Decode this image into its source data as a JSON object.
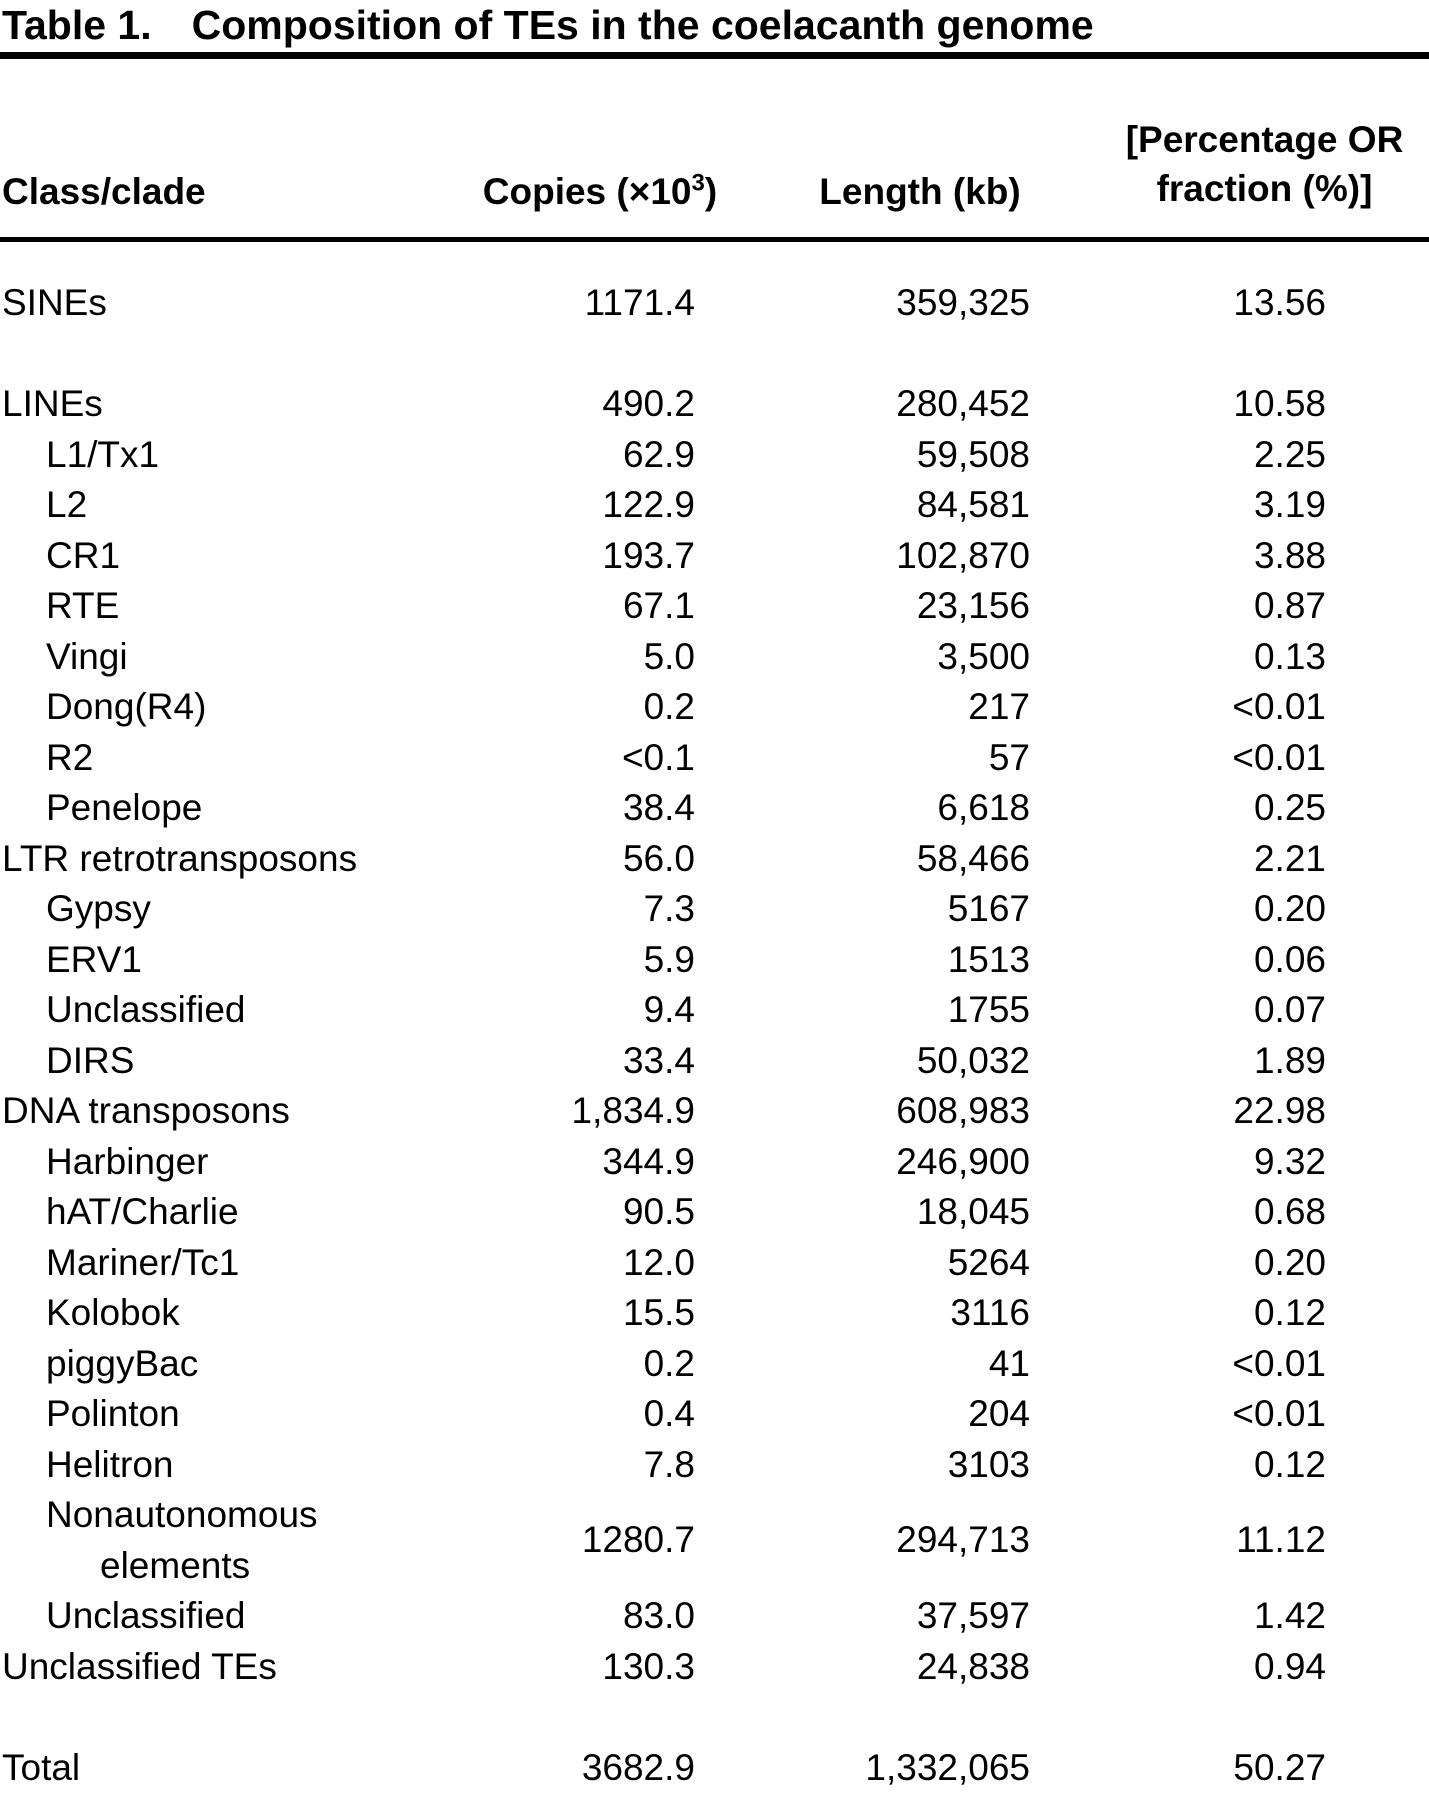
{
  "title": {
    "label": "Table 1.",
    "text": "Composition of TEs in the coelacanth genome"
  },
  "table": {
    "columns": {
      "class_clade": "Class/clade",
      "copies_prefix": "Copies (×10",
      "copies_sup": "3",
      "copies_suffix": ")",
      "length": "Length (kb)",
      "percentage_line1": "[Percentage OR",
      "percentage_line2": "fraction (%)]"
    },
    "rows": [
      {
        "label": "SINEs",
        "indent": 0,
        "copies": "1171.4",
        "length": "359,325",
        "pct": "13.56"
      },
      {
        "blank": true
      },
      {
        "label": "LINEs",
        "indent": 0,
        "copies": "490.2",
        "length": "280,452",
        "pct": "10.58"
      },
      {
        "label": "L1/Tx1",
        "indent": 1,
        "copies": "62.9",
        "length": "59,508",
        "pct": "2.25"
      },
      {
        "label": "L2",
        "indent": 1,
        "copies": "122.9",
        "length": "84,581",
        "pct": "3.19"
      },
      {
        "label": "CR1",
        "indent": 1,
        "copies": "193.7",
        "length": "102,870",
        "pct": "3.88"
      },
      {
        "label": "RTE",
        "indent": 1,
        "copies": "67.1",
        "length": "23,156",
        "pct": "0.87"
      },
      {
        "label": "Vingi",
        "indent": 1,
        "copies": "5.0",
        "length": "3,500",
        "pct": "0.13"
      },
      {
        "label": "Dong(R4)",
        "indent": 1,
        "copies": "0.2",
        "length": "217",
        "pct": "<0.01"
      },
      {
        "label": "R2",
        "indent": 1,
        "copies": "<0.1",
        "length": "57",
        "pct": "<0.01"
      },
      {
        "label": "Penelope",
        "indent": 1,
        "copies": "38.4",
        "length": "6,618",
        "pct": "0.25"
      },
      {
        "label": "LTR retrotransposons",
        "indent": 0,
        "copies": "56.0",
        "length": "58,466",
        "pct": "2.21"
      },
      {
        "label": "Gypsy",
        "indent": 1,
        "copies": "7.3",
        "length": "5167",
        "pct": "0.20"
      },
      {
        "label": "ERV1",
        "indent": 1,
        "copies": "5.9",
        "length": "1513",
        "pct": "0.06"
      },
      {
        "label": "Unclassified",
        "indent": 1,
        "copies": "9.4",
        "length": "1755",
        "pct": "0.07"
      },
      {
        "label": "DIRS",
        "indent": 1,
        "copies": "33.4",
        "length": "50,032",
        "pct": "1.89"
      },
      {
        "label": "DNA transposons",
        "indent": 0,
        "copies": "1,834.9",
        "length": "608,983",
        "pct": "22.98"
      },
      {
        "label": "Harbinger",
        "indent": 1,
        "copies": "344.9",
        "length": "246,900",
        "pct": "9.32"
      },
      {
        "label": "hAT/Charlie",
        "indent": 1,
        "copies": "90.5",
        "length": "18,045",
        "pct": "0.68"
      },
      {
        "label": "Mariner/Tc1",
        "indent": 1,
        "copies": "12.0",
        "length": "5264",
        "pct": "0.20"
      },
      {
        "label": "Kolobok",
        "indent": 1,
        "copies": "15.5",
        "length": "3116",
        "pct": "0.12"
      },
      {
        "label": "piggyBac",
        "indent": 1,
        "copies": "0.2",
        "length": "41",
        "pct": "<0.01"
      },
      {
        "label": "Polinton",
        "indent": 1,
        "copies": "0.4",
        "length": "204",
        "pct": "<0.01"
      },
      {
        "label": "Helitron",
        "indent": 1,
        "copies": "7.8",
        "length": "3103",
        "pct": "0.12"
      },
      {
        "label": "Nonautonomous",
        "label2": "elements",
        "indent": 1,
        "copies": "1280.7",
        "length": "294,713",
        "pct": "11.12"
      },
      {
        "label": "Unclassified",
        "indent": 1,
        "copies": "83.0",
        "length": "37,597",
        "pct": "1.42"
      },
      {
        "label": "Unclassified TEs",
        "indent": 0,
        "copies": "130.3",
        "length": "24,838",
        "pct": "0.94"
      },
      {
        "blank": true
      },
      {
        "label": "Total",
        "indent": 0,
        "copies": "3682.9",
        "length": "1,332,065",
        "pct": "50.27"
      }
    ]
  }
}
